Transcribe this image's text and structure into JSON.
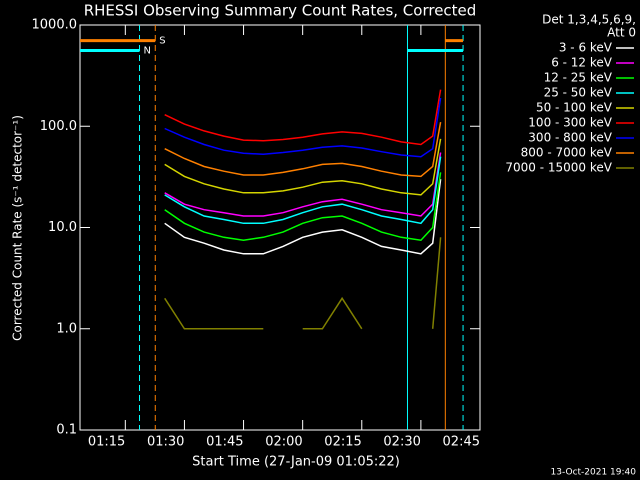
{
  "chart_data": {
    "type": "line",
    "title": "RHESSI Observing Summary Count Rates, Corrected",
    "xlabel": "Start Time (27-Jan-09 01:05:22)",
    "ylabel": "Corrected Count Rate (s⁻¹ detector⁻¹)",
    "legend_title": [
      "Det 1,3,4,5,6,9,",
      "Att 0"
    ],
    "footer": "13-Oct-2021 19:40",
    "log_y": true,
    "xlim": [
      63.5,
      165
    ],
    "xticks": [
      {
        "value": 75,
        "label": "01:15"
      },
      {
        "value": 90,
        "label": "01:30"
      },
      {
        "value": 105,
        "label": "01:45"
      },
      {
        "value": 120,
        "label": "02:00"
      },
      {
        "value": 135,
        "label": "02:15"
      },
      {
        "value": 150,
        "label": "02:30"
      },
      {
        "value": 165,
        "label": "02:45"
      }
    ],
    "ylim": [
      0.1,
      1000
    ],
    "yticks": [
      0.1,
      {
        "value": 1,
        "label": "1.0"
      },
      {
        "value": 10,
        "label": "10.0"
      },
      {
        "value": 100,
        "label": "100.0"
      },
      {
        "value": 1000,
        "label": "1000.0"
      }
    ],
    "x": [
      85,
      90,
      95,
      100,
      105,
      110,
      115,
      120,
      125,
      130,
      135,
      140,
      145,
      150,
      153,
      155
    ],
    "series": [
      {
        "name": "3 - 6 keV",
        "color": "#ffffff",
        "values": [
          11,
          8,
          7,
          6,
          5.5,
          5.5,
          6.5,
          8,
          9,
          9.5,
          8,
          6.5,
          6,
          5.5,
          7,
          30
        ]
      },
      {
        "name": "6 - 12 keV",
        "color": "#ff00ff",
        "values": [
          22,
          17,
          15,
          14,
          13,
          13,
          14,
          16,
          18,
          19,
          17,
          15,
          14,
          13,
          17,
          55
        ]
      },
      {
        "name": "12 - 25 keV",
        "color": "#00ff00",
        "values": [
          15,
          11,
          9,
          8,
          7.5,
          8,
          9,
          11,
          12.5,
          13,
          11,
          9,
          8,
          7.5,
          10,
          35
        ]
      },
      {
        "name": "25 - 50 keV",
        "color": "#00ffff",
        "values": [
          21,
          16,
          13,
          12,
          11,
          11,
          12,
          14,
          16,
          17,
          15,
          13,
          12,
          11,
          15,
          50
        ]
      },
      {
        "name": "50 - 100 keV",
        "color": "#d4d400",
        "values": [
          42,
          32,
          27,
          24,
          22,
          22,
          23,
          25,
          28,
          29,
          27,
          24,
          22,
          21,
          27,
          75
        ]
      },
      {
        "name": "100 - 300 keV",
        "color": "#ff0000",
        "values": [
          130,
          105,
          90,
          80,
          73,
          72,
          74,
          78,
          84,
          88,
          85,
          78,
          70,
          66,
          80,
          230
        ]
      },
      {
        "name": "300 - 800 keV",
        "color": "#0000ff",
        "values": [
          95,
          78,
          66,
          58,
          54,
          53,
          55,
          58,
          62,
          64,
          61,
          56,
          52,
          50,
          60,
          190
        ]
      },
      {
        "name": "800 - 7000 keV",
        "color": "#ff8000",
        "values": [
          60,
          48,
          40,
          36,
          33,
          33,
          35,
          38,
          42,
          43,
          40,
          36,
          33,
          32,
          40,
          110
        ]
      },
      {
        "name": "7000 - 15000 keV",
        "color": "#808000",
        "values": [
          2,
          1,
          1,
          1,
          1,
          1,
          null,
          1,
          1,
          2,
          1,
          null,
          null,
          null,
          1,
          8
        ]
      }
    ],
    "vlines": [
      {
        "x": 78.6,
        "color": "#00ffff",
        "dashed": true
      },
      {
        "x": 82.6,
        "color": "#ff8000",
        "dashed": true
      },
      {
        "x": 146.6,
        "color": "#00ffff",
        "dashed": false
      },
      {
        "x": 156.2,
        "color": "#ff8000",
        "dashed": false
      },
      {
        "x": 160.7,
        "color": "#00ffff",
        "dashed": true
      }
    ],
    "flags": [
      {
        "label": "S",
        "color": "#ff8000",
        "level": 700,
        "intervals": [
          [
            63.5,
            82.6
          ],
          [
            156.2,
            160.7
          ]
        ]
      },
      {
        "label": "N",
        "color": "#00ffff",
        "level": 560,
        "intervals": [
          [
            63.5,
            78.6
          ],
          [
            146.6,
            160.7
          ]
        ]
      }
    ]
  }
}
